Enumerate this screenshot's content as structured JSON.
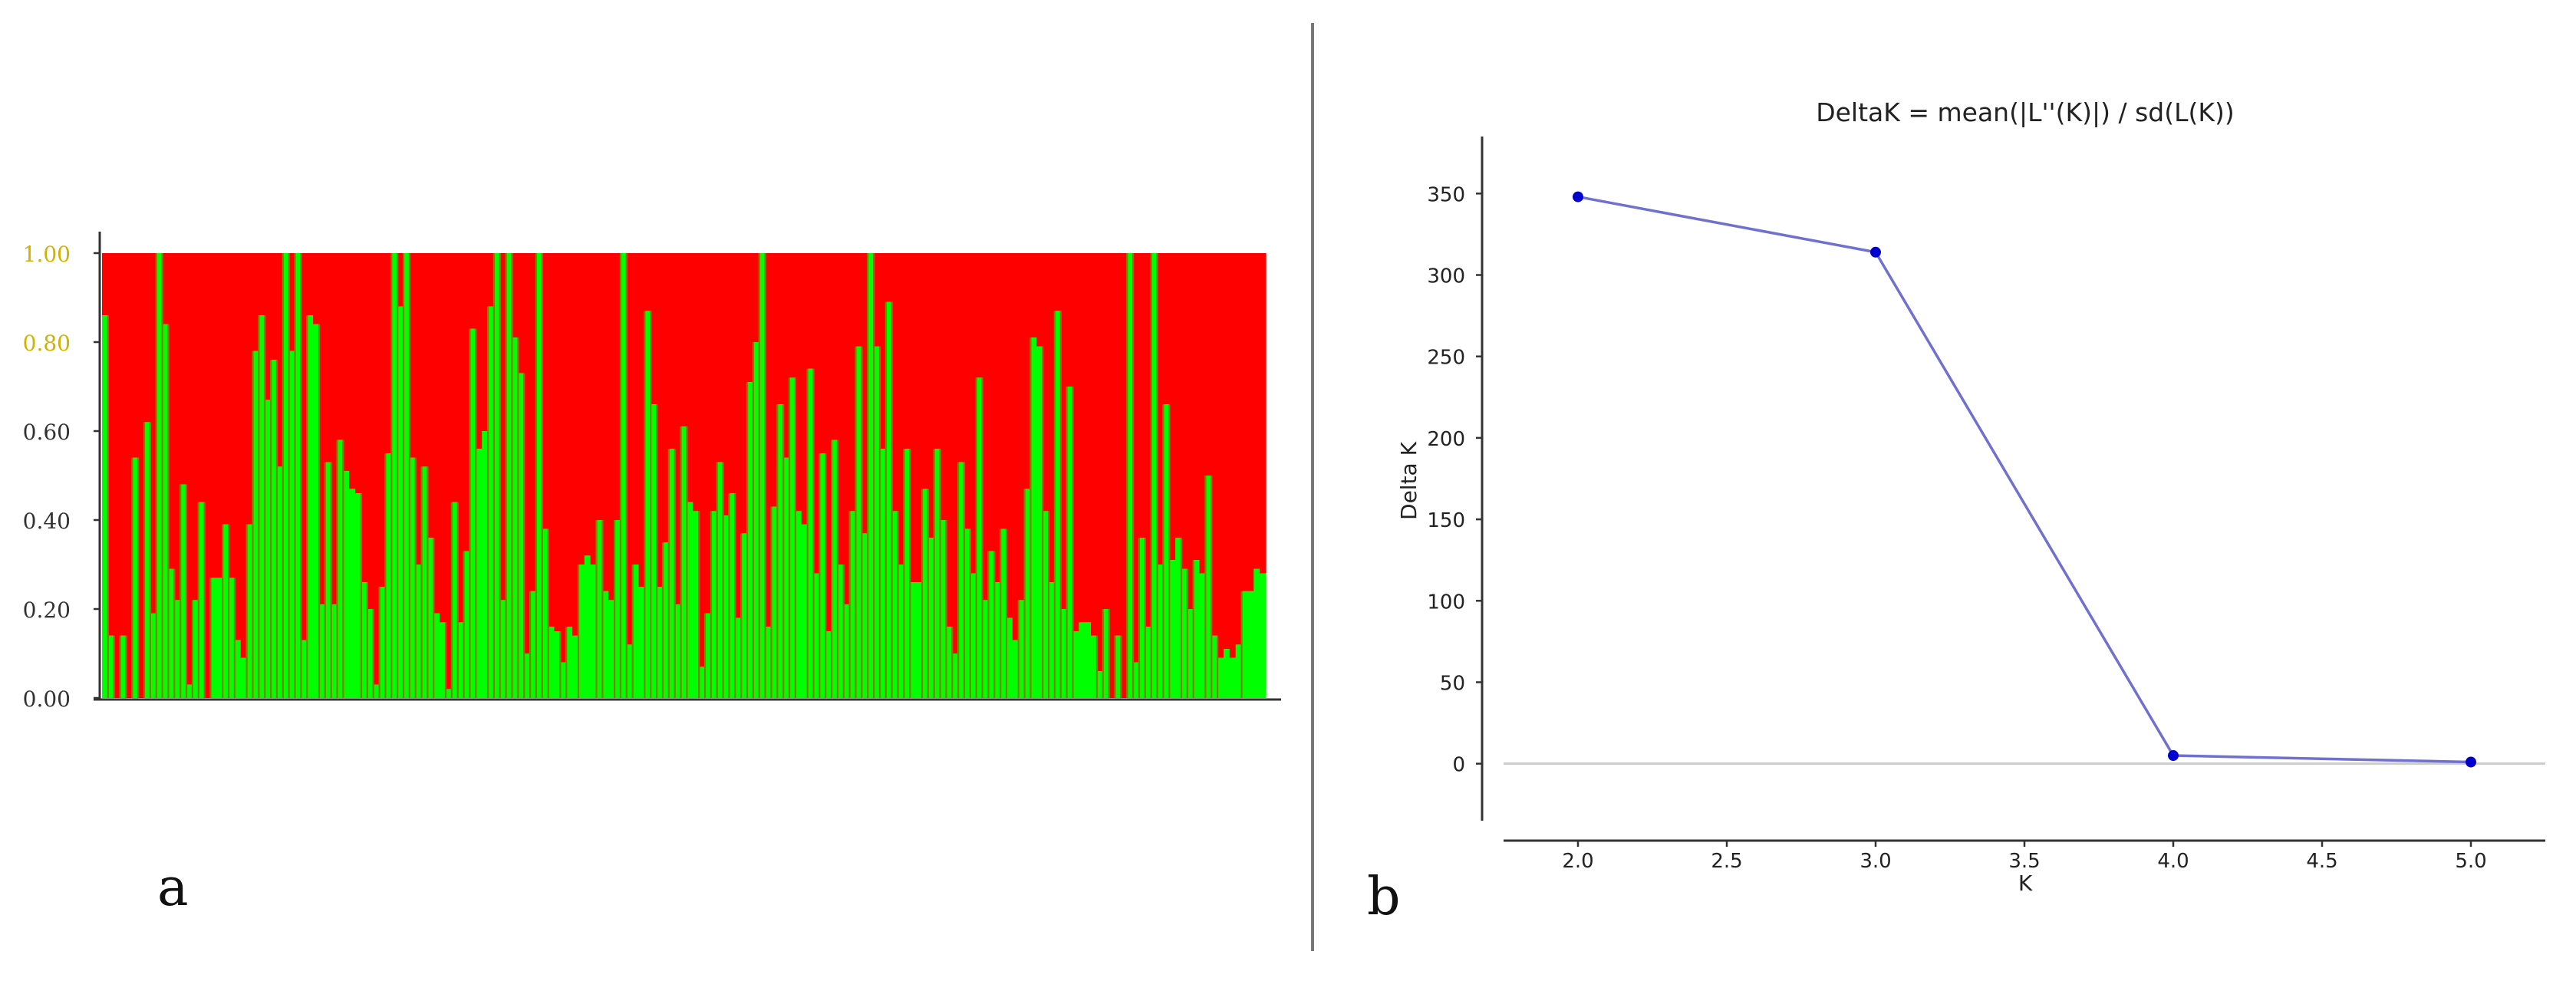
{
  "panel_labels": {
    "a": "a",
    "b": "b"
  },
  "colors": {
    "cluster1": "#ff0000",
    "cluster2": "#00ff00",
    "bar_outline": "#808000",
    "line": "#7070d0",
    "marker": "#0000cc",
    "axis": "#333333",
    "divider": "#777777",
    "zero_line": "#cccccc",
    "tick_label_a": "#333333",
    "tick_label_a_highlight": "#d4b000"
  },
  "chart_data": [
    {
      "type": "bar",
      "stacked": true,
      "title": "",
      "xlabel": "",
      "ylabel": "",
      "ylim": [
        0,
        1
      ],
      "yticks": [
        "0.00",
        "0.20",
        "0.40",
        "0.60",
        "0.80",
        "1.00"
      ],
      "series": [
        {
          "color": "#00ff00",
          "values": [
            0.86,
            0.14,
            0.0,
            0.14,
            0.0,
            0.54,
            0.0,
            0.62,
            0.19,
            1.0,
            0.84,
            0.29,
            0.22,
            0.48,
            0.03,
            0.22,
            0.44,
            0.0,
            0.27,
            0.27,
            0.39,
            0.27,
            0.13,
            0.09,
            0.39,
            0.78,
            0.86,
            0.67,
            0.76,
            0.52,
            1.0,
            0.78,
            1.0,
            0.13,
            0.86,
            0.84,
            0.21,
            0.53,
            0.21,
            0.58,
            0.51,
            0.47,
            0.46,
            0.26,
            0.2,
            0.03,
            0.25,
            0.55,
            1.0,
            0.88,
            1.0,
            0.54,
            0.3,
            0.52,
            0.36,
            0.19,
            0.17,
            0.02,
            0.44,
            0.17,
            0.33,
            0.83,
            0.56,
            0.6,
            0.88,
            1.0,
            0.22,
            1.0,
            0.81,
            0.73,
            0.1,
            0.24,
            1.0,
            0.38,
            0.16,
            0.15,
            0.08,
            0.16,
            0.14,
            0.3,
            0.32,
            0.3,
            0.4,
            0.24,
            0.22,
            0.4,
            1.0,
            0.12,
            0.3,
            0.25,
            0.87,
            0.66,
            0.25,
            0.35,
            0.56,
            0.21,
            0.61,
            0.44,
            0.42,
            0.07,
            0.19,
            0.42,
            0.53,
            0.41,
            0.46,
            0.18,
            0.37,
            0.71,
            0.8,
            1.0,
            0.16,
            0.43,
            0.66,
            0.54,
            0.72,
            0.42,
            0.39,
            0.74,
            0.28,
            0.55,
            0.15,
            0.58,
            0.3,
            0.21,
            0.42,
            0.79,
            0.37,
            1.0,
            0.79,
            0.56,
            0.89,
            0.42,
            0.3,
            0.56,
            0.26,
            0.26,
            0.47,
            0.36,
            0.56,
            0.4,
            0.16,
            0.1,
            0.53,
            0.38,
            0.28,
            0.72,
            0.22,
            0.33,
            0.26,
            0.38,
            0.18,
            0.13,
            0.22,
            0.47,
            0.81,
            0.79,
            0.42,
            0.26,
            0.87,
            0.2,
            0.7,
            0.15,
            0.17,
            0.17,
            0.14,
            0.06,
            0.2,
            0.0,
            0.14,
            0.0,
            1.0,
            0.08,
            0.36,
            0.16,
            1.0,
            0.3,
            0.66,
            0.31,
            0.36,
            0.29,
            0.2,
            0.31,
            0.28,
            0.5,
            0.14,
            0.09,
            0.11,
            0.09,
            0.12,
            0.24,
            0.24,
            0.29,
            0.28
          ]
        },
        {
          "color": "#ff0000",
          "values": "remainder to 1.00"
        }
      ]
    },
    {
      "type": "line",
      "title": "DeltaK = mean(|L''(K)|) / sd(L(K))",
      "xlabel": "K",
      "ylabel": "Delta K",
      "xlim": [
        1.75,
        5.25
      ],
      "ylim": [
        -35,
        385
      ],
      "xticks": [
        "2.0",
        "2.5",
        "3.0",
        "3.5",
        "4.0",
        "4.5",
        "5.0"
      ],
      "yticks": [
        "0",
        "50",
        "100",
        "150",
        "200",
        "250",
        "300",
        "350"
      ],
      "grid": false,
      "x": [
        2.0,
        3.0,
        4.0,
        5.0
      ],
      "y": [
        348,
        314,
        5,
        1
      ]
    }
  ]
}
